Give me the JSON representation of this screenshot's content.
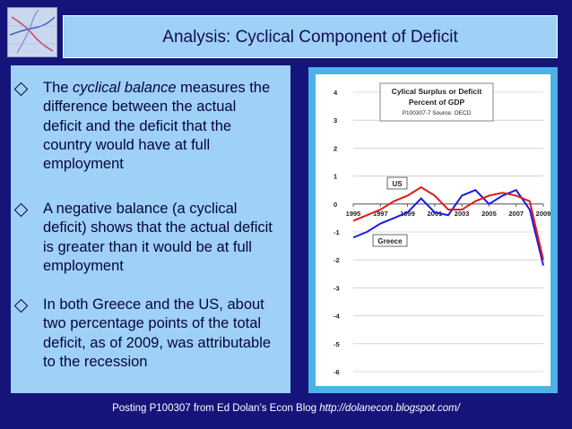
{
  "title": "Analysis: Cyclical Component of Deficit",
  "bullets": [
    {
      "lines": [
        {
          "pre": "The ",
          "em": "cyclical balance",
          "post": " measures the"
        },
        {
          "pre": "difference between the actual"
        },
        {
          "pre": "deficit and the deficit that the"
        },
        {
          "pre": "country would have at full"
        },
        {
          "pre": "employment"
        }
      ]
    },
    {
      "lines": [
        {
          "pre": "A negative balance (a cyclical"
        },
        {
          "pre": "deficit) shows that the actual deficit"
        },
        {
          "pre": "is greater than it would be at full"
        },
        {
          "pre": "employment"
        }
      ]
    },
    {
      "lines": [
        {
          "pre": "In both Greece and the US, about"
        },
        {
          "pre": "two percentage points of the total"
        },
        {
          "pre": "deficit, as of 2009, was attributable"
        },
        {
          "pre": "to the recession"
        }
      ]
    }
  ],
  "footer": {
    "text": "Posting P100307 from Ed Dolan’s Econ Blog ",
    "url": "http://dolanecon.blogspot.com/"
  },
  "colors": {
    "us": "#1a1ae6",
    "greece": "#e01818"
  },
  "chart_data": {
    "type": "line",
    "title": "Cylical Surplus or Deficit",
    "subtitle": "Percent of GDP",
    "source": "P100307-7 Source: OECD",
    "x": [
      1995,
      1996,
      1997,
      1998,
      1999,
      2000,
      2001,
      2002,
      2003,
      2004,
      2005,
      2006,
      2007,
      2008,
      2009
    ],
    "xticks": [
      "1995",
      "1997",
      "1999",
      "2001",
      "2003",
      "2005",
      "2007",
      "2009"
    ],
    "ylim": [
      -6,
      4
    ],
    "yticks": [
      "4",
      "3",
      "2",
      "1",
      "0",
      "-1",
      "-2",
      "-3",
      "-4",
      "-5",
      "-6"
    ],
    "grid": true,
    "series": [
      {
        "name": "US",
        "values": [
          -1.2,
          -1.0,
          -0.7,
          -0.5,
          -0.3,
          0.2,
          -0.3,
          -0.4,
          0.3,
          0.5,
          0.0,
          0.3,
          0.5,
          -0.2,
          -2.2
        ]
      },
      {
        "name": "Greece",
        "values": [
          -0.6,
          -0.4,
          -0.2,
          0.1,
          0.3,
          0.6,
          0.3,
          -0.2,
          -0.2,
          0.1,
          0.3,
          0.4,
          0.3,
          0.1,
          -2.0
        ]
      }
    ]
  }
}
